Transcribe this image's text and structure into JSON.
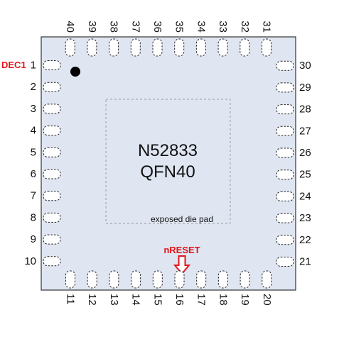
{
  "chip": {
    "name": "N52833",
    "package": "QFN40",
    "pad_label": "exposed die pad"
  },
  "pins": {
    "left": [
      "1",
      "2",
      "3",
      "4",
      "5",
      "6",
      "7",
      "8",
      "9",
      "10"
    ],
    "bottom": [
      "11",
      "12",
      "13",
      "14",
      "15",
      "16",
      "17",
      "18",
      "19",
      "20"
    ],
    "right": [
      "21",
      "22",
      "23",
      "24",
      "25",
      "26",
      "27",
      "28",
      "29",
      "30"
    ],
    "top": [
      "31",
      "32",
      "33",
      "34",
      "35",
      "36",
      "37",
      "38",
      "39",
      "40"
    ]
  },
  "callouts": {
    "dec1": "DEC1",
    "nreset": "nRESET"
  },
  "colors": {
    "body_fill": "#dfe6f2",
    "body_stroke": "#333333",
    "callout": "#e0161b",
    "pad_outline": "#999999"
  },
  "icons": {
    "pin1_marker": "filled-circle",
    "reset_arrow": "outline-down-arrow"
  }
}
